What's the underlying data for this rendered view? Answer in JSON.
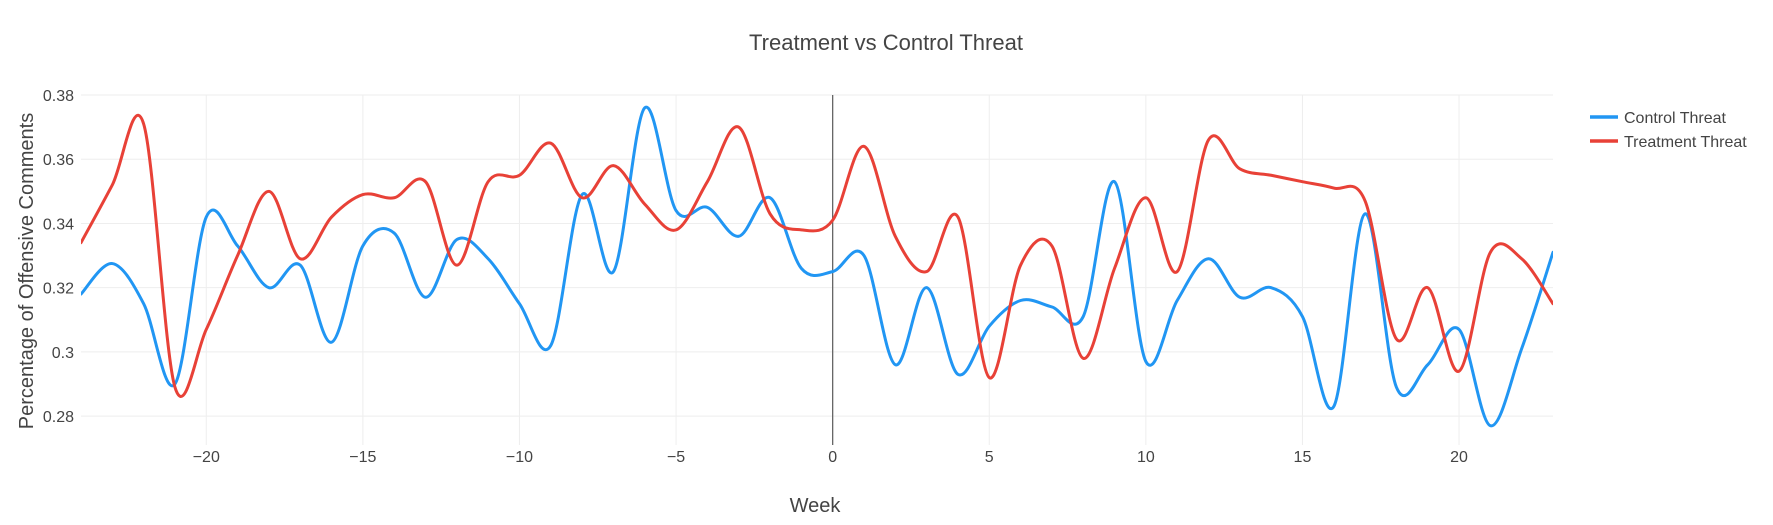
{
  "chart_data": {
    "type": "line",
    "title": "Treatment vs Control Threat",
    "xlabel": "Week",
    "ylabel": "Percentage of Offensive Comments",
    "xlim": [
      -24,
      23
    ],
    "ylim": [
      0.271,
      0.38
    ],
    "x_ticks": [
      -20,
      -15,
      -10,
      -5,
      0,
      5,
      10,
      15,
      20
    ],
    "x_tick_labels": [
      "−20",
      "−15",
      "−10",
      "−5",
      "0",
      "5",
      "10",
      "15",
      "20"
    ],
    "y_ticks": [
      0.28,
      0.3,
      0.32,
      0.34,
      0.36,
      0.38
    ],
    "y_tick_labels": [
      "0.28",
      "0.3",
      "0.32",
      "0.34",
      "0.36",
      "0.38"
    ],
    "grid": true,
    "legend": "right",
    "vertical_marker_x": 0,
    "x": [
      -24,
      -23,
      -22,
      -21,
      -20,
      -19,
      -18,
      -17,
      -16,
      -15,
      -14,
      -13,
      -12,
      -11,
      -10,
      -9,
      -8,
      -7,
      -6,
      -5,
      -4,
      -3,
      -2,
      -1,
      0,
      1,
      2,
      3,
      4,
      5,
      6,
      7,
      8,
      9,
      10,
      11,
      12,
      13,
      14,
      15,
      16,
      17,
      18,
      19,
      20,
      21,
      22,
      23
    ],
    "series": [
      {
        "name": "Control Threat",
        "color": "#2196F3",
        "values": [
          0.318,
          0.3275,
          0.315,
          0.29,
          0.342,
          0.333,
          0.32,
          0.327,
          0.303,
          0.333,
          0.337,
          0.317,
          0.335,
          0.329,
          0.315,
          0.302,
          0.349,
          0.325,
          0.376,
          0.344,
          0.345,
          0.336,
          0.348,
          0.326,
          0.325,
          0.33,
          0.296,
          0.32,
          0.293,
          0.308,
          0.316,
          0.314,
          0.311,
          0.353,
          0.297,
          0.316,
          0.329,
          0.317,
          0.32,
          0.311,
          0.283,
          0.343,
          0.289,
          0.296,
          0.307,
          0.277,
          0.301,
          0.331
        ]
      },
      {
        "name": "Treatment Threat",
        "color": "#E84137",
        "values": [
          0.334,
          0.352,
          0.371,
          0.289,
          0.307,
          0.33,
          0.35,
          0.329,
          0.342,
          0.349,
          0.348,
          0.353,
          0.327,
          0.353,
          0.355,
          0.365,
          0.348,
          0.358,
          0.346,
          0.338,
          0.353,
          0.37,
          0.343,
          0.338,
          0.341,
          0.364,
          0.336,
          0.325,
          0.342,
          0.292,
          0.327,
          0.333,
          0.298,
          0.326,
          0.348,
          0.325,
          0.366,
          0.357,
          0.355,
          0.353,
          0.351,
          0.347,
          0.304,
          0.32,
          0.294,
          0.331,
          0.329,
          0.315
        ]
      }
    ]
  }
}
